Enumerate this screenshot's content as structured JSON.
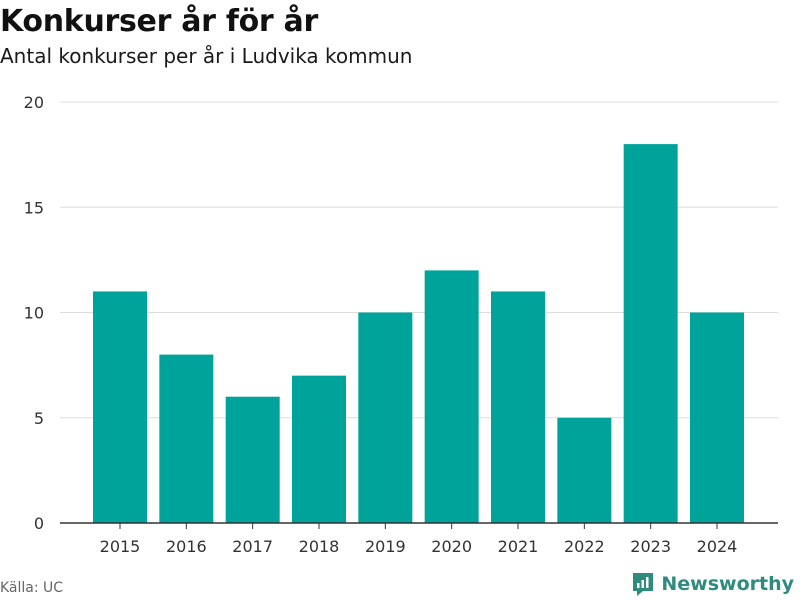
{
  "header": {
    "title": "Konkurser år för år",
    "subtitle": "Antal konkurser per år i Ludvika kommun"
  },
  "footer": {
    "source": "Källa: UC",
    "brand": "Newsworthy"
  },
  "colors": {
    "bar": "#00a39a",
    "grid": "#dddddd",
    "axis": "#333333",
    "brand": "#2e8b7e"
  },
  "chart_data": {
    "type": "bar",
    "title": "Konkurser år för år",
    "subtitle": "Antal konkurser per år i Ludvika kommun",
    "xlabel": "",
    "ylabel": "",
    "categories": [
      "2015",
      "2016",
      "2017",
      "2018",
      "2019",
      "2020",
      "2021",
      "2022",
      "2023",
      "2024"
    ],
    "values": [
      11,
      8,
      6,
      7,
      10,
      12,
      11,
      5,
      18,
      10
    ],
    "ylim": [
      0,
      20
    ],
    "yticks": [
      0,
      5,
      10,
      15,
      20
    ],
    "grid": true,
    "legend": "none"
  }
}
